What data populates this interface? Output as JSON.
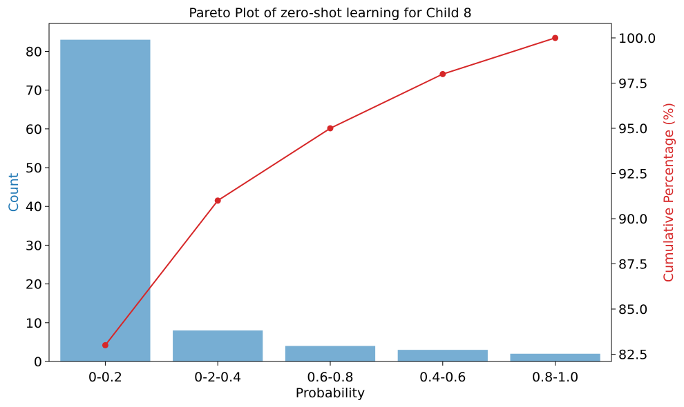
{
  "chart_data": {
    "type": "bar",
    "title": "Pareto Plot of zero-shot learning for Child 8",
    "xlabel": "Probability",
    "ylabel": "Count",
    "y2label": "Cumulative Percentage (%)",
    "categories": [
      "0-0.2",
      "0-2-0.4",
      "0.6-0.8",
      "0.4-0.6",
      "0.8-1.0"
    ],
    "series": [
      {
        "values": [
          83,
          8,
          4,
          3,
          2
        ],
        "axis": "left",
        "kind": "bar",
        "color": "#77aed3"
      },
      {
        "values": [
          83,
          91,
          95,
          98,
          100
        ],
        "axis": "right",
        "kind": "line",
        "color": "#d62728"
      }
    ],
    "ylim": [
      0,
      87.2
    ],
    "y2lim": [
      82.1,
      100.8
    ],
    "yticks": [
      0,
      10,
      20,
      30,
      40,
      50,
      60,
      70,
      80
    ],
    "y2ticks": [
      "82.5",
      "85.0",
      "87.5",
      "90.0",
      "92.5",
      "95.0",
      "97.5",
      "100.0"
    ],
    "ylabel_color": "#1f77b4",
    "y2label_color": "#d62728",
    "grid": false
  }
}
